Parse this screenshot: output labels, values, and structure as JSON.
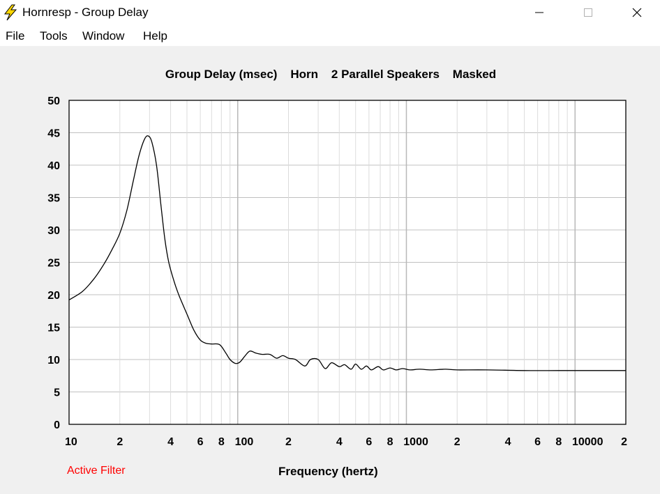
{
  "window": {
    "title": "Hornresp - Group Delay",
    "icon": "lightning-bolt-icon",
    "controls": [
      "minimize-icon",
      "maximize-icon",
      "close-icon"
    ]
  },
  "menu": [
    {
      "label": "File"
    },
    {
      "label": "Tools"
    },
    {
      "label": "Window"
    },
    {
      "label": "Help"
    }
  ],
  "status_text": "Active Filter",
  "colors": {
    "status": "#ff0000",
    "grid": "#c0c0c0",
    "curve": "#000000",
    "plot_bg": "#ffffff"
  },
  "chart_data": {
    "type": "line",
    "title": "Group Delay (msec)    Horn    2 Parallel Speakers    Masked",
    "xlabel": "Frequency (hertz)",
    "ylabel": "",
    "x_scale": "log",
    "xlim": [
      10,
      20000
    ],
    "ylim": [
      0,
      50
    ],
    "grid": true,
    "y_ticks": [
      0,
      5,
      10,
      15,
      20,
      25,
      30,
      35,
      40,
      45,
      50
    ],
    "x_tick_labels": [
      {
        "x": 10,
        "label": "10"
      },
      {
        "x": 20,
        "label": "2"
      },
      {
        "x": 40,
        "label": "4"
      },
      {
        "x": 60,
        "label": "6"
      },
      {
        "x": 80,
        "label": "8"
      },
      {
        "x": 100,
        "label": "100"
      },
      {
        "x": 200,
        "label": "2"
      },
      {
        "x": 400,
        "label": "4"
      },
      {
        "x": 600,
        "label": "6"
      },
      {
        "x": 800,
        "label": "8"
      },
      {
        "x": 1000,
        "label": "1000"
      },
      {
        "x": 2000,
        "label": "2"
      },
      {
        "x": 4000,
        "label": "4"
      },
      {
        "x": 6000,
        "label": "6"
      },
      {
        "x": 8000,
        "label": "8"
      },
      {
        "x": 10000,
        "label": "10000"
      },
      {
        "x": 20000,
        "label": "2"
      }
    ],
    "series": [
      {
        "values": [
          [
            10,
            19.2
          ],
          [
            12,
            20.5
          ],
          [
            14,
            22.4
          ],
          [
            16,
            24.6
          ],
          [
            18,
            27.0
          ],
          [
            20,
            29.5
          ],
          [
            22,
            33.0
          ],
          [
            24,
            37.5
          ],
          [
            26,
            41.5
          ],
          [
            28,
            44.0
          ],
          [
            29.5,
            44.5
          ],
          [
            31,
            43.5
          ],
          [
            33,
            40.0
          ],
          [
            35,
            34.0
          ],
          [
            37,
            28.5
          ],
          [
            39,
            25.0
          ],
          [
            42,
            22.0
          ],
          [
            45,
            19.8
          ],
          [
            50,
            17.0
          ],
          [
            55,
            14.5
          ],
          [
            60,
            13.0
          ],
          [
            65,
            12.5
          ],
          [
            70,
            12.4
          ],
          [
            78,
            12.3
          ],
          [
            85,
            11.0
          ],
          [
            90,
            10.0
          ],
          [
            97,
            9.4
          ],
          [
            103,
            9.6
          ],
          [
            110,
            10.5
          ],
          [
            118,
            11.3
          ],
          [
            128,
            11.0
          ],
          [
            140,
            10.8
          ],
          [
            155,
            10.8
          ],
          [
            170,
            10.2
          ],
          [
            185,
            10.6
          ],
          [
            200,
            10.2
          ],
          [
            220,
            10.0
          ],
          [
            250,
            9.0
          ],
          [
            270,
            10.0
          ],
          [
            300,
            10.0
          ],
          [
            330,
            8.6
          ],
          [
            360,
            9.5
          ],
          [
            400,
            8.9
          ],
          [
            430,
            9.2
          ],
          [
            470,
            8.5
          ],
          [
            500,
            9.3
          ],
          [
            540,
            8.5
          ],
          [
            580,
            9.0
          ],
          [
            620,
            8.4
          ],
          [
            680,
            8.9
          ],
          [
            730,
            8.4
          ],
          [
            800,
            8.7
          ],
          [
            870,
            8.4
          ],
          [
            950,
            8.6
          ],
          [
            1050,
            8.4
          ],
          [
            1200,
            8.5
          ],
          [
            1400,
            8.4
          ],
          [
            1700,
            8.5
          ],
          [
            2000,
            8.4
          ],
          [
            3000,
            8.4
          ],
          [
            5000,
            8.3
          ],
          [
            8000,
            8.3
          ],
          [
            12000,
            8.3
          ],
          [
            20000,
            8.3
          ]
        ]
      }
    ]
  }
}
